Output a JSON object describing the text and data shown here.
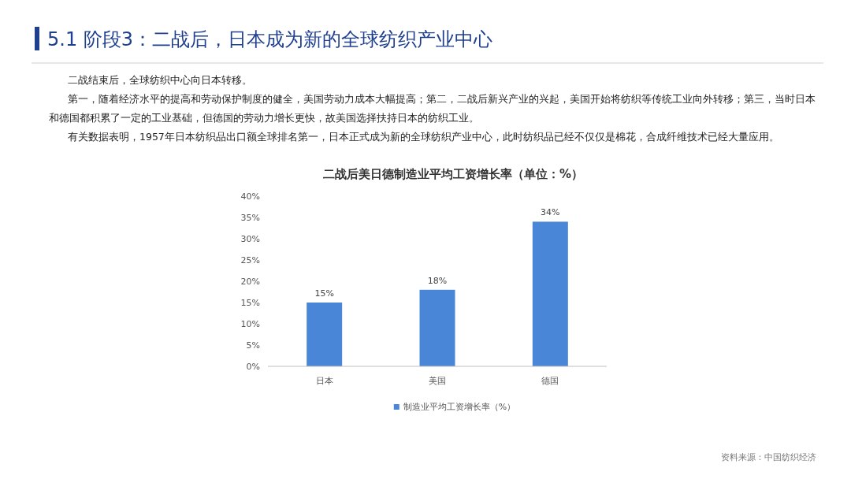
{
  "chart_data": {
    "type": "bar",
    "title": "5.1 阶段3：二战后，日本成为新的全球纺织产业中心",
    "subtitle": "二战后美日德制造业平均工资增长率（单位：%）",
    "annotations": [
      "二战结束后，全球纺织中心向日本转移。",
      "第一，随着经济水平的提高和劳动保护制度的健全，美国劳动力成本大幅提高；第二，二战后新兴产业的兴起，美国开始将纺织等传统工业向外转移；第三，当时日本和德国都积累了一定的工业基础，但德国的劳动力增长更快，故美国选择扶持日本的纺织工业。",
      "有关数据表明，1957年日本纺织品出口额全球排名第一，日本正式成为新的全球纺织产业中心，此时纺织品已经不仅仅是棉花，合成纤维技术已经大量应用。",
      "资料来源：中国纺织经济"
    ],
    "categories": [
      "日本",
      "美国",
      "德国"
    ],
    "series": [
      {
        "name": "制造业平均工资增长率（%）",
        "color": "#4a86d8",
        "values": [
          15,
          18,
          34
        ],
        "value_labels": [
          "15%",
          "18%",
          "34%"
        ]
      }
    ],
    "ylim": [
      0,
      40
    ],
    "yticks": [
      {
        "value": 0,
        "label": "0%"
      },
      {
        "value": 5,
        "label": "5%"
      },
      {
        "value": 10,
        "label": "10%"
      },
      {
        "value": 15,
        "label": "15%"
      },
      {
        "value": 20,
        "label": "20%"
      },
      {
        "value": 25,
        "label": "25%"
      },
      {
        "value": 30,
        "label": "30%"
      },
      {
        "value": 35,
        "label": "35%"
      },
      {
        "value": 40,
        "label": "40%"
      }
    ],
    "legend": "bottom"
  }
}
